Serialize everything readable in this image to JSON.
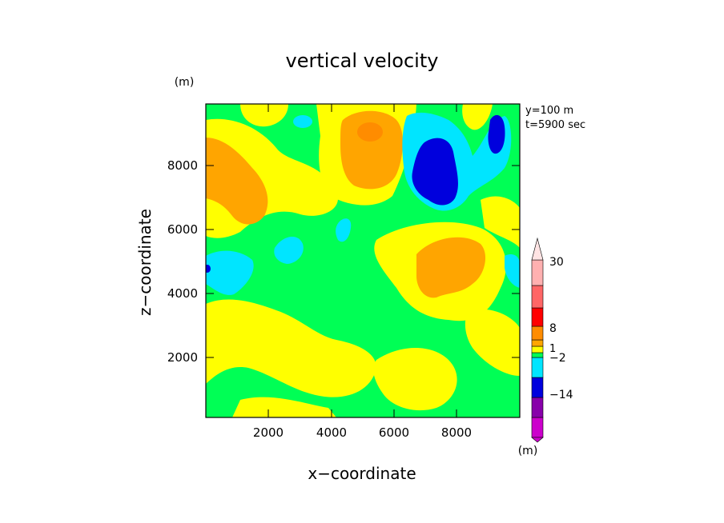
{
  "chart_data": {
    "type": "heatmap",
    "title": "vertical velocity",
    "xlabel": "x−coordinate",
    "ylabel": "z−coordinate",
    "x_unit": "(m)",
    "y_unit": "(m)",
    "colorbar_unit": "(m)",
    "info_lines": [
      "y=100 m",
      "t=5900 sec"
    ],
    "xlim": [
      0,
      10000
    ],
    "ylim": [
      0,
      10000
    ],
    "xticks": [
      "2000",
      "4000",
      "6000",
      "8000"
    ],
    "yticks": [
      "2000",
      "4000",
      "6000",
      "8000"
    ],
    "colorbar_labels": [
      "30",
      "8",
      "1",
      "−2",
      "−14"
    ],
    "levels": [
      {
        "color": "#cc00cc"
      },
      {
        "color": "#8800aa"
      },
      {
        "color": "#0000dd"
      },
      {
        "color": "#00e5ff"
      },
      {
        "color": "#00ff55"
      },
      {
        "color": "#ffff00"
      },
      {
        "color": "#ffa500"
      },
      {
        "color": "#ff8c00"
      },
      {
        "color": "#ff0000"
      },
      {
        "color": "#ff6666"
      },
      {
        "color": "#ffb0b0"
      }
    ]
  }
}
